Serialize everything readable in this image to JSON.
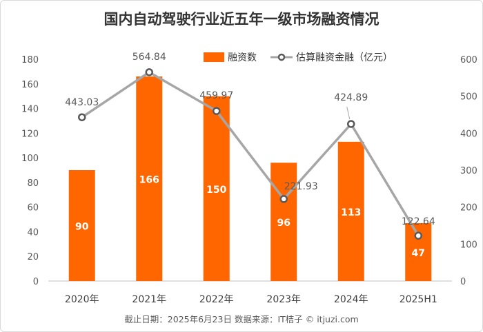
{
  "chart_data": {
    "type": "bar+line",
    "title": "国内自动驾驶行业近五年一级市场融资情况",
    "categories": [
      "2020年",
      "2021年",
      "2022年",
      "2023年",
      "2024年",
      "2025H1"
    ],
    "series": [
      {
        "name": "融资数",
        "type": "bar",
        "axis": "left",
        "values": [
          90,
          166,
          150,
          96,
          113,
          47
        ],
        "color": "#ff6600"
      },
      {
        "name": "估算融资金融（亿元）",
        "type": "line",
        "axis": "right",
        "values": [
          443.03,
          564.84,
          459.97,
          221.93,
          424.89,
          122.64
        ],
        "color": "#a6a6a6"
      }
    ],
    "y_left": {
      "min": 0,
      "max": 180,
      "step": 20
    },
    "y_right": {
      "min": 0,
      "max": 600,
      "step": 100
    },
    "legend_position": "top",
    "grid": false
  },
  "footer": "截止日期：2025年6月23日   数据来源：IT桔子 © itjuzi.com"
}
